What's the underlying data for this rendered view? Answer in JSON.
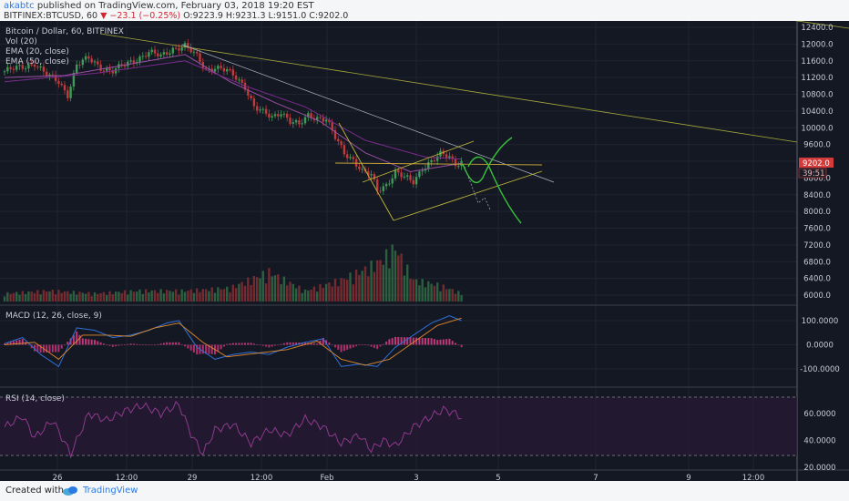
{
  "header": {
    "author": "akabtc",
    "published_text": "published on TradingView.com, February 03, 2018 19:20 EST",
    "symbol": "BITFINEX:BTCUSD, 60",
    "change": "−23.1 (−0.25%)",
    "ohlc": "O:9223.9 H:9231.3 L:9151.0 C:9202.0"
  },
  "footer": {
    "created": "Created with",
    "brand": "TradingView"
  },
  "colors": {
    "background": "#141823",
    "bull": "#3f9b57",
    "bear": "#c23a3a",
    "ema20": "#9b4fa0",
    "ema50": "#7a2c8c",
    "macd": "#2f6fd6",
    "signal": "#e08a2c",
    "rsi": "#8e3a8c",
    "trendline": "#a6a83a",
    "projection_up": "#39c23b"
  },
  "chart_data": [
    {
      "type": "candlestick",
      "title": "Bitcoin / Dollar, 60, BITFINEX",
      "legend": [
        "Vol (20)",
        "EMA (20, close)",
        "EMA (50, close)"
      ],
      "ylim": [
        5700,
        12600
      ],
      "y_ticks": [
        "12400.0",
        "12000.0",
        "11600.0",
        "11200.0",
        "10800.0",
        "10400.0",
        "10000.0",
        "9600.0",
        "9200.0",
        "8800.0",
        "8400.0",
        "8000.0",
        "7600.0",
        "7200.0",
        "6800.0",
        "6400.0",
        "6000.0"
      ],
      "x_ticks": [
        "26",
        "12:00",
        "29",
        "12:00",
        "Feb",
        "3",
        "5",
        "7",
        "9",
        "12:00"
      ],
      "price_label": "9202.0",
      "countdown": "39:51",
      "close_path": [
        [
          0,
          11350
        ],
        [
          6,
          11450
        ],
        [
          10,
          11550
        ],
        [
          14,
          11250
        ],
        [
          18,
          11100
        ],
        [
          21,
          10800
        ],
        [
          24,
          11500
        ],
        [
          28,
          11650
        ],
        [
          32,
          11450
        ],
        [
          36,
          11350
        ],
        [
          40,
          11500
        ],
        [
          44,
          11650
        ],
        [
          48,
          11800
        ],
        [
          52,
          11700
        ],
        [
          56,
          11900
        ],
        [
          60,
          11950
        ],
        [
          64,
          11700
        ],
        [
          67,
          11400
        ],
        [
          70,
          11450
        ],
        [
          74,
          11350
        ],
        [
          77,
          11200
        ],
        [
          80,
          11000
        ],
        [
          83,
          10500
        ],
        [
          86,
          10350
        ],
        [
          89,
          10250
        ],
        [
          92,
          10400
        ],
        [
          95,
          10150
        ],
        [
          98,
          10050
        ],
        [
          101,
          10300
        ],
        [
          104,
          10250
        ],
        [
          107,
          10200
        ],
        [
          110,
          9750
        ],
        [
          113,
          9400
        ],
        [
          116,
          9250
        ],
        [
          119,
          8950
        ],
        [
          122,
          8850
        ],
        [
          124,
          8500
        ],
        [
          127,
          8650
        ],
        [
          130,
          8950
        ],
        [
          133,
          8800
        ],
        [
          136,
          8700
        ],
        [
          139,
          9050
        ],
        [
          142,
          9200
        ],
        [
          145,
          9350
        ],
        [
          148,
          9300
        ],
        [
          150,
          9150
        ],
        [
          152,
          9200
        ]
      ],
      "ema20_path": [
        [
          0,
          11200
        ],
        [
          20,
          11250
        ],
        [
          40,
          11500
        ],
        [
          60,
          11750
        ],
        [
          75,
          11100
        ],
        [
          90,
          10600
        ],
        [
          105,
          10150
        ],
        [
          120,
          9400
        ],
        [
          135,
          8950
        ],
        [
          152,
          9150
        ]
      ],
      "ema50_path": [
        [
          0,
          11100
        ],
        [
          30,
          11300
        ],
        [
          60,
          11600
        ],
        [
          80,
          11000
        ],
        [
          100,
          10500
        ],
        [
          120,
          9700
        ],
        [
          140,
          9300
        ],
        [
          152,
          9250
        ]
      ],
      "volume_path": [
        [
          0,
          0.15
        ],
        [
          15,
          0.2
        ],
        [
          30,
          0.15
        ],
        [
          45,
          0.2
        ],
        [
          60,
          0.2
        ],
        [
          75,
          0.25
        ],
        [
          88,
          0.55
        ],
        [
          100,
          0.2
        ],
        [
          112,
          0.4
        ],
        [
          120,
          0.6
        ],
        [
          125,
          0.75
        ],
        [
          130,
          1
        ],
        [
          136,
          0.4
        ],
        [
          145,
          0.3
        ],
        [
          152,
          0.15
        ]
      ]
    },
    {
      "type": "line",
      "title": "MACD (12, 26, close, 9)",
      "ylim": [
        -130,
        140
      ],
      "y_ticks": [
        "100.0000",
        "0.0000",
        "-100.0000"
      ],
      "macd_path": [
        [
          0,
          5
        ],
        [
          6,
          30
        ],
        [
          12,
          -40
        ],
        [
          18,
          -90
        ],
        [
          24,
          70
        ],
        [
          30,
          60
        ],
        [
          36,
          30
        ],
        [
          42,
          40
        ],
        [
          48,
          60
        ],
        [
          54,
          90
        ],
        [
          58,
          100
        ],
        [
          64,
          -10
        ],
        [
          70,
          -60
        ],
        [
          76,
          -40
        ],
        [
          82,
          -30
        ],
        [
          88,
          -40
        ],
        [
          94,
          -10
        ],
        [
          100,
          10
        ],
        [
          106,
          25
        ],
        [
          112,
          -90
        ],
        [
          118,
          -80
        ],
        [
          124,
          -90
        ],
        [
          130,
          -10
        ],
        [
          136,
          40
        ],
        [
          142,
          90
        ],
        [
          148,
          120
        ],
        [
          152,
          100
        ]
      ],
      "signal_path": [
        [
          0,
          0
        ],
        [
          10,
          10
        ],
        [
          18,
          -60
        ],
        [
          26,
          40
        ],
        [
          34,
          40
        ],
        [
          42,
          35
        ],
        [
          50,
          70
        ],
        [
          58,
          90
        ],
        [
          66,
          10
        ],
        [
          74,
          -50
        ],
        [
          84,
          -35
        ],
        [
          94,
          -20
        ],
        [
          104,
          15
        ],
        [
          112,
          -60
        ],
        [
          120,
          -85
        ],
        [
          128,
          -60
        ],
        [
          136,
          10
        ],
        [
          144,
          80
        ],
        [
          152,
          110
        ]
      ]
    },
    {
      "type": "line",
      "title": "RSI (14, close)",
      "ylim": [
        18,
        72
      ],
      "y_ticks": [
        "60.0000",
        "40.0000",
        "20.0000"
      ],
      "band": [
        30,
        70
      ],
      "rsi_path": [
        [
          0,
          50
        ],
        [
          6,
          58
        ],
        [
          10,
          42
        ],
        [
          16,
          55
        ],
        [
          22,
          30
        ],
        [
          28,
          60
        ],
        [
          34,
          55
        ],
        [
          40,
          62
        ],
        [
          46,
          66
        ],
        [
          52,
          60
        ],
        [
          58,
          67
        ],
        [
          62,
          45
        ],
        [
          66,
          30
        ],
        [
          70,
          48
        ],
        [
          76,
          52
        ],
        [
          82,
          38
        ],
        [
          88,
          48
        ],
        [
          94,
          44
        ],
        [
          100,
          56
        ],
        [
          106,
          50
        ],
        [
          112,
          38
        ],
        [
          118,
          44
        ],
        [
          122,
          33
        ],
        [
          126,
          40
        ],
        [
          130,
          36
        ],
        [
          136,
          50
        ],
        [
          142,
          58
        ],
        [
          146,
          63
        ],
        [
          150,
          60
        ],
        [
          152,
          57
        ]
      ]
    }
  ]
}
